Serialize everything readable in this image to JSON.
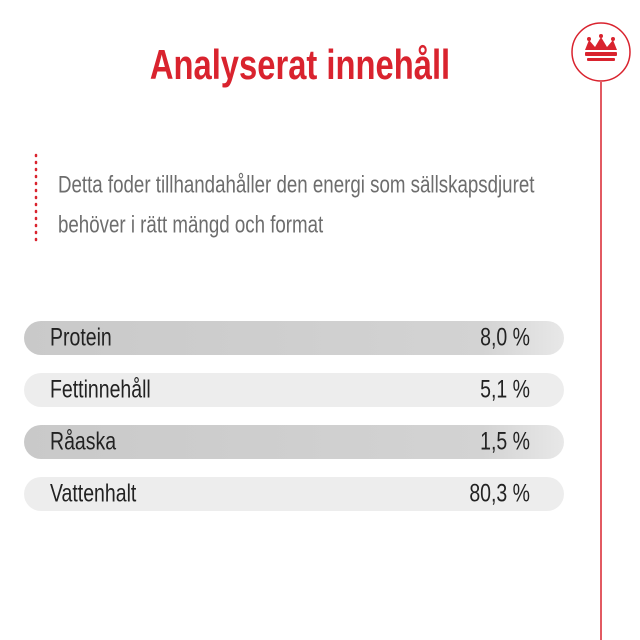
{
  "header": {
    "title": "Analyserat innehåll"
  },
  "description": [
    "Detta foder tillhandahåller den energi som sällskapsdjuret",
    "behöver i rätt mängd och format"
  ],
  "table": {
    "rows": [
      [
        "Protein",
        "8,0 %"
      ],
      [
        "Fettinnehåll",
        "5,1 %"
      ],
      [
        "Råaska",
        "1,5 %"
      ],
      [
        "Vattenhalt",
        "80,3 %"
      ]
    ]
  }
}
